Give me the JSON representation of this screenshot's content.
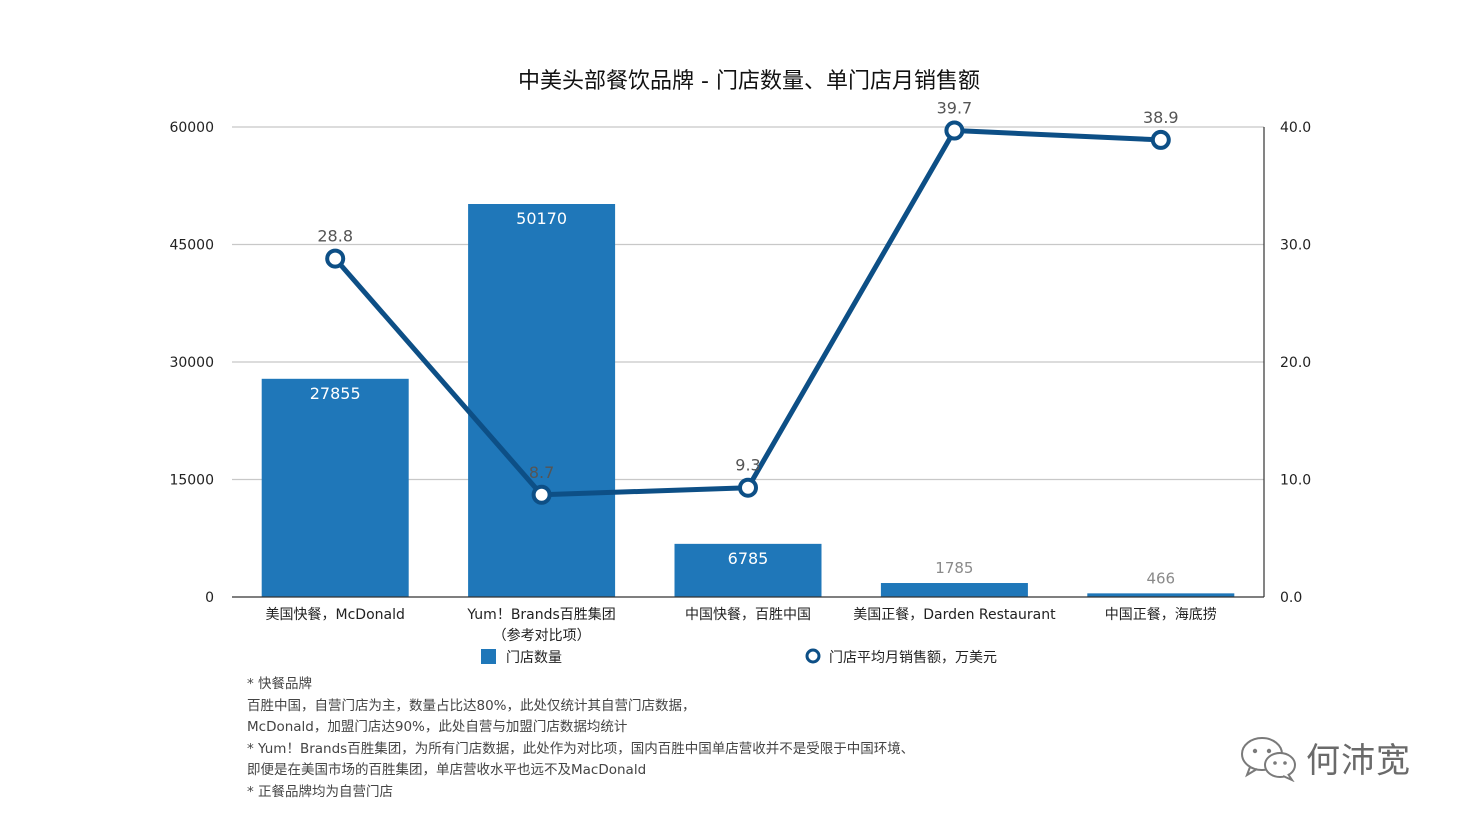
{
  "chart_data": {
    "type": "bar+line",
    "title": "中美头部餐饮品牌 - 门店数量、单门店月销售额",
    "categories": [
      [
        "美国快餐，McDonald"
      ],
      [
        "Yum！Brands百胜集团",
        "（参考对比项）"
      ],
      [
        "中国快餐，百胜中国"
      ],
      [
        "美国正餐，Darden Restaurant"
      ],
      [
        "中国正餐，海底捞"
      ]
    ],
    "series": [
      {
        "name": "门店数量",
        "type": "bar",
        "axis": "left",
        "color": "#1f77b9",
        "values": [
          27855,
          50170,
          6785,
          1785,
          466
        ]
      },
      {
        "name": "门店平均月销售额，万美元",
        "type": "line",
        "axis": "right",
        "color": "#0d4f86",
        "values": [
          28.8,
          8.7,
          9.3,
          39.7,
          38.9
        ]
      }
    ],
    "bar_labels": [
      "27855",
      "50170",
      "6785",
      "1785",
      "466"
    ],
    "line_labels": [
      "28.8",
      "8.7",
      "9.3",
      "39.7",
      "38.9"
    ],
    "y_left": {
      "ylim": [
        0,
        60000
      ],
      "ticks": [
        "0",
        "15000",
        "30000",
        "45000",
        "60000"
      ]
    },
    "y_right": {
      "ylim": [
        0,
        40
      ],
      "ticks": [
        "0.0",
        "10.0",
        "20.0",
        "30.0",
        "40.0"
      ]
    },
    "grid": true,
    "legend_position": "bottom"
  },
  "notes": [
    "* 快餐品牌",
    "百胜中国，自营门店为主，数量占比达80%，此处仅统计其自营门店数据，",
    "McDonald，加盟门店达90%，此处自营与加盟门店数据均统计",
    "* Yum！Brands百胜集团，为所有门店数据，此处作为对比项，国内百胜中国单店营收并不是受限于中国环境、",
    "即便是在美国市场的百胜集团，单店营收水平也远不及MacDonald",
    "* 正餐品牌均为自营门店"
  ],
  "watermark": {
    "icon": "wechat-icon",
    "text": "何沛宽"
  }
}
